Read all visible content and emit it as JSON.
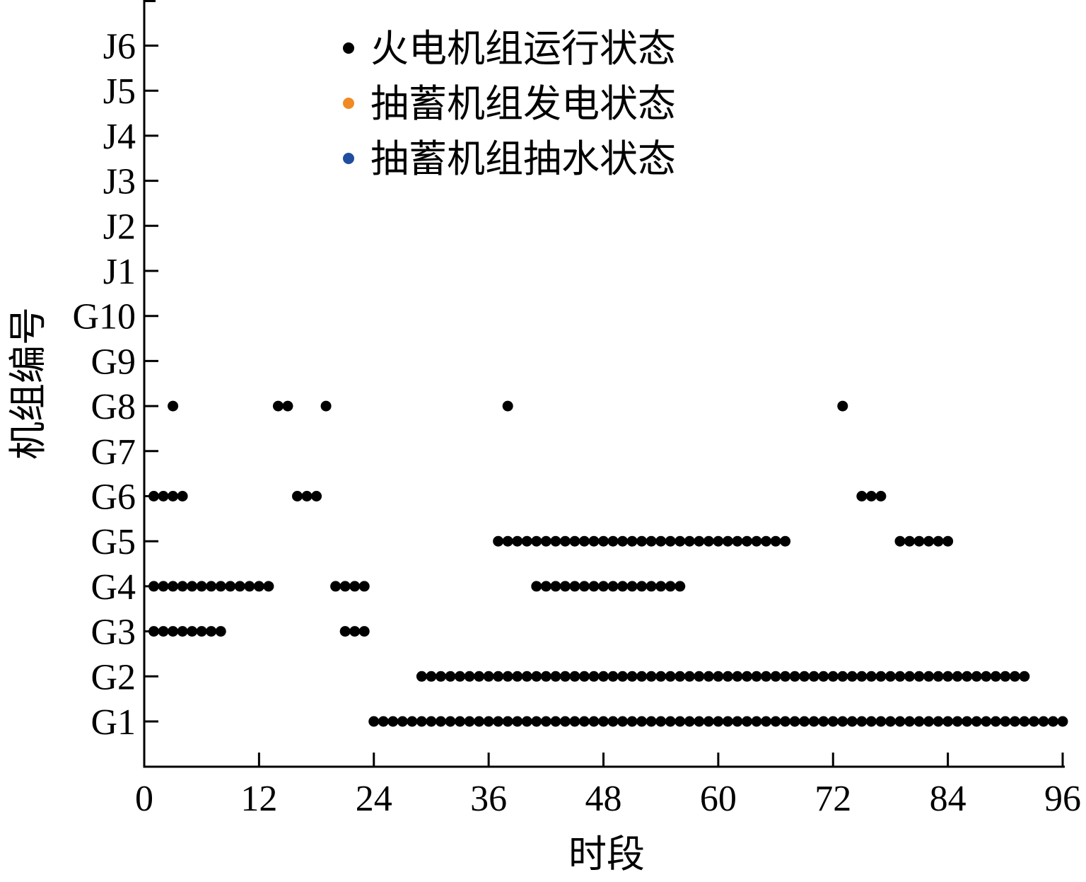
{
  "chart_data": {
    "type": "scatter",
    "title": "",
    "xlabel": "时段",
    "ylabel": "机组编号",
    "xlim": [
      0,
      96
    ],
    "x_ticks": [
      0,
      12,
      24,
      36,
      48,
      60,
      72,
      84,
      96
    ],
    "y_categories": [
      "G1",
      "G2",
      "G3",
      "G4",
      "G5",
      "G6",
      "G7",
      "G8",
      "G9",
      "G10",
      "J1",
      "J2",
      "J3",
      "J4",
      "J5",
      "J6"
    ],
    "grid": false,
    "legend_position": "top-center",
    "series": [
      {
        "name": "火电机组运行状态",
        "color": "#000000",
        "points": {
          "G1": [
            24,
            25,
            26,
            27,
            28,
            29,
            30,
            31,
            32,
            33,
            34,
            35,
            36,
            37,
            38,
            39,
            40,
            41,
            42,
            43,
            44,
            45,
            46,
            47,
            48,
            49,
            50,
            51,
            52,
            53,
            54,
            55,
            56,
            57,
            58,
            59,
            60,
            61,
            62,
            63,
            64,
            65,
            66,
            67,
            68,
            69,
            70,
            71,
            72,
            73,
            74,
            75,
            76,
            77,
            78,
            79,
            80,
            81,
            82,
            83,
            84,
            85,
            86,
            87,
            88,
            89,
            90,
            91,
            92,
            93,
            94,
            95,
            96
          ],
          "G2": [
            29,
            30,
            31,
            32,
            33,
            34,
            35,
            36,
            37,
            38,
            39,
            40,
            41,
            42,
            43,
            44,
            45,
            46,
            47,
            48,
            49,
            50,
            51,
            52,
            53,
            54,
            55,
            56,
            57,
            58,
            59,
            60,
            61,
            62,
            63,
            64,
            65,
            66,
            67,
            68,
            69,
            70,
            71,
            72,
            73,
            74,
            75,
            76,
            77,
            78,
            79,
            80,
            81,
            82,
            83,
            84,
            85,
            86,
            87,
            88,
            89,
            90,
            91,
            92
          ],
          "G3": [
            1,
            2,
            3,
            4,
            5,
            6,
            7,
            8,
            21,
            22,
            23
          ],
          "G4": [
            1,
            2,
            3,
            4,
            5,
            6,
            7,
            8,
            9,
            10,
            11,
            12,
            13,
            20,
            21,
            22,
            23,
            41,
            42,
            43,
            44,
            45,
            46,
            47,
            48,
            49,
            50,
            51,
            52,
            53,
            54,
            55,
            56
          ],
          "G5": [
            37,
            38,
            39,
            40,
            41,
            42,
            43,
            44,
            45,
            46,
            47,
            48,
            49,
            50,
            51,
            52,
            53,
            54,
            55,
            56,
            57,
            58,
            59,
            60,
            61,
            62,
            63,
            64,
            65,
            66,
            67,
            79,
            80,
            81,
            82,
            83,
            84
          ],
          "G6": [
            1,
            2,
            3,
            4,
            16,
            17,
            18,
            75,
            76,
            77
          ],
          "G8": [
            3,
            14,
            15,
            19,
            38,
            73
          ]
        }
      },
      {
        "name": "抽蓄机组发电状态",
        "color": "#f08a24",
        "points": {}
      },
      {
        "name": "抽蓄机组抽水状态",
        "color": "#1f4e9e",
        "points": {}
      }
    ]
  }
}
